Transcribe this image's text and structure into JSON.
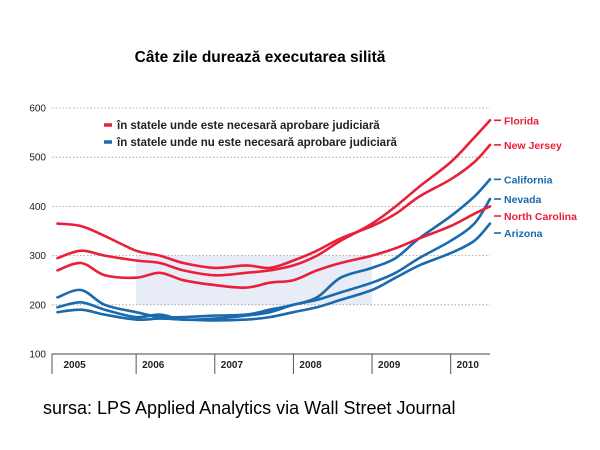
{
  "chart_data": {
    "type": "line",
    "title": "Câte zile durează executarea silită",
    "source": "sursa: LPS Applied Analytics via Wall Street Journal",
    "ylim": [
      100,
      600
    ],
    "yticks": [
      "600",
      "500",
      "400",
      "300",
      "200",
      "100"
    ],
    "year_labels": [
      "2005",
      "2006",
      "2007",
      "2008",
      "2009",
      "2010"
    ],
    "x_range": [
      2004.93,
      2010.5
    ],
    "grid": true,
    "legend_position": "top-left",
    "legend": [
      {
        "label": "în statele unde este necesară aprobare judiciară",
        "color": "#e8203a"
      },
      {
        "label": "în statele unde nu este necesară aprobare judiciară",
        "color": "#1a6aad"
      }
    ],
    "colors": {
      "judicial": "#e8203a",
      "non_judicial": "#1a6aad",
      "band": "#e8ecf6"
    },
    "series": [
      {
        "name": "Florida",
        "group": "judicial",
        "x": [
          2005.0,
          2005.3,
          2005.6,
          2006.0,
          2006.3,
          2006.6,
          2007.0,
          2007.4,
          2007.7,
          2008.0,
          2008.3,
          2008.6,
          2009.0,
          2009.3,
          2009.6,
          2010.0,
          2010.3,
          2010.5
        ],
        "y": [
          295,
          310,
          300,
          290,
          285,
          270,
          260,
          265,
          270,
          280,
          300,
          330,
          365,
          400,
          440,
          490,
          540,
          575
        ]
      },
      {
        "name": "New Jersey",
        "group": "judicial",
        "x": [
          2005.0,
          2005.3,
          2005.6,
          2006.0,
          2006.3,
          2006.6,
          2007.0,
          2007.4,
          2007.7,
          2008.0,
          2008.3,
          2008.6,
          2009.0,
          2009.3,
          2009.6,
          2010.0,
          2010.3,
          2010.5
        ],
        "y": [
          365,
          360,
          340,
          310,
          300,
          285,
          275,
          280,
          275,
          290,
          310,
          335,
          360,
          385,
          420,
          455,
          490,
          525
        ]
      },
      {
        "name": "California",
        "group": "non_judicial",
        "x": [
          2005.0,
          2005.3,
          2005.6,
          2006.0,
          2006.3,
          2006.6,
          2007.0,
          2007.4,
          2007.7,
          2008.0,
          2008.3,
          2008.6,
          2009.0,
          2009.3,
          2009.6,
          2010.0,
          2010.3,
          2010.5
        ],
        "y": [
          215,
          230,
          200,
          185,
          175,
          175,
          178,
          180,
          190,
          200,
          215,
          255,
          275,
          295,
          335,
          380,
          420,
          455
        ]
      },
      {
        "name": "Nevada",
        "group": "non_judicial",
        "x": [
          2005.0,
          2005.3,
          2005.6,
          2006.0,
          2006.3,
          2006.6,
          2007.0,
          2007.4,
          2007.7,
          2008.0,
          2008.3,
          2008.6,
          2009.0,
          2009.3,
          2009.6,
          2010.0,
          2010.3,
          2010.5
        ],
        "y": [
          195,
          205,
          190,
          175,
          180,
          170,
          172,
          178,
          185,
          200,
          210,
          225,
          245,
          265,
          295,
          330,
          365,
          415
        ]
      },
      {
        "name": "North Carolina",
        "group": "judicial",
        "x": [
          2005.0,
          2005.3,
          2005.6,
          2006.0,
          2006.3,
          2006.6,
          2007.0,
          2007.4,
          2007.7,
          2008.0,
          2008.3,
          2008.6,
          2009.0,
          2009.3,
          2009.6,
          2010.0,
          2010.3,
          2010.5
        ],
        "y": [
          270,
          285,
          260,
          255,
          265,
          250,
          240,
          235,
          245,
          250,
          270,
          285,
          300,
          315,
          335,
          360,
          385,
          400
        ]
      },
      {
        "name": "Arizona",
        "group": "non_judicial",
        "x": [
          2005.0,
          2005.3,
          2005.6,
          2006.0,
          2006.3,
          2006.6,
          2007.0,
          2007.4,
          2007.7,
          2008.0,
          2008.3,
          2008.6,
          2009.0,
          2009.3,
          2009.6,
          2010.0,
          2010.3,
          2010.5
        ],
        "y": [
          185,
          190,
          180,
          170,
          172,
          170,
          168,
          170,
          175,
          185,
          195,
          210,
          230,
          255,
          280,
          305,
          330,
          365
        ]
      }
    ]
  }
}
